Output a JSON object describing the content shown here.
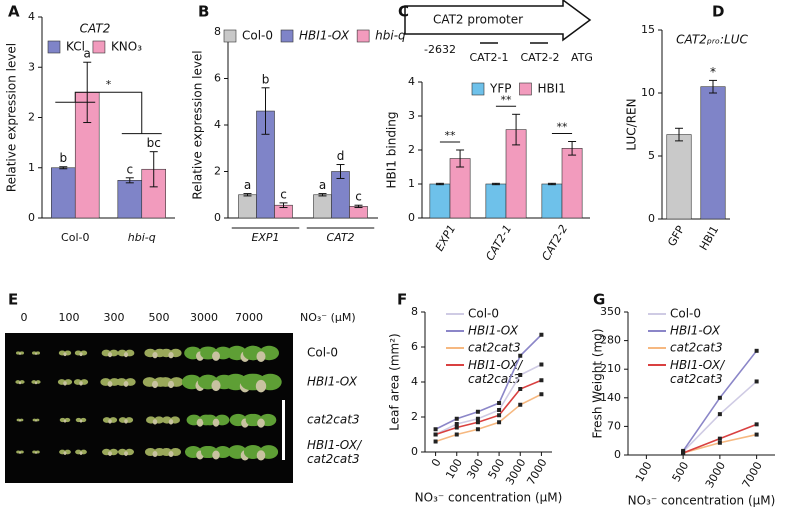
{
  "chart_data": [
    {
      "type": "bar",
      "panel": "A",
      "title": "CAT2",
      "ylabel": "Relative expression level",
      "categories": [
        "Col-0",
        "hbi-q"
      ],
      "categories_italic": [
        false,
        true
      ],
      "series": [
        {
          "name": "KCl",
          "color": "#7f84c8",
          "values": [
            1,
            0.75
          ],
          "errors": [
            0.02,
            0.05
          ],
          "letters": [
            "b",
            "c"
          ]
        },
        {
          "name": "KNO₃",
          "color": "#f29bbd",
          "values": [
            2.5,
            0.97
          ],
          "errors": [
            0.6,
            0.35
          ],
          "letters": [
            "a",
            "bc"
          ]
        }
      ],
      "ylim": [
        0,
        4
      ],
      "yticks": [
        0,
        1,
        2,
        3,
        4
      ],
      "comparison": "*"
    },
    {
      "type": "bar",
      "panel": "B",
      "ylabel": "Relative expression level",
      "categories": [
        "EXP1",
        "CAT2"
      ],
      "categories_italic": [
        true,
        true
      ],
      "series": [
        {
          "name": "Col-0",
          "color": "#c8c8c8",
          "values": [
            1,
            1
          ],
          "errors": [
            0.05,
            0.05
          ],
          "letters": [
            "a",
            "a"
          ]
        },
        {
          "name": "HBI1-OX",
          "italic": true,
          "color": "#7f84c8",
          "values": [
            4.6,
            2.0
          ],
          "errors": [
            1.0,
            0.3
          ],
          "letters": [
            "b",
            "d"
          ]
        },
        {
          "name": "hbi-q",
          "italic": true,
          "color": "#f29bbd",
          "values": [
            0.55,
            0.5
          ],
          "errors": [
            0.1,
            0.05
          ],
          "letters": [
            "c",
            "c"
          ]
        }
      ],
      "ylim": [
        0,
        8
      ],
      "yticks": [
        0,
        2,
        4,
        6,
        8
      ]
    },
    {
      "type": "bar",
      "panel": "C",
      "ylabel": "HBI1 binding",
      "categories": [
        "EXP1",
        "CAT2-1",
        "CAT2-2"
      ],
      "categories_italic": [
        true,
        true,
        true
      ],
      "series": [
        {
          "name": "YFP",
          "color": "#6ec1ea",
          "values": [
            1,
            1,
            1
          ],
          "errors": [
            0.02,
            0.02,
            0.02
          ]
        },
        {
          "name": "HBI1",
          "color": "#f29bbd",
          "values": [
            1.75,
            2.6,
            2.05
          ],
          "errors": [
            0.25,
            0.45,
            0.2
          ]
        }
      ],
      "sig": [
        "**",
        "**",
        "**"
      ],
      "ylim": [
        0,
        4
      ],
      "yticks": [
        0,
        1,
        2,
        3,
        4
      ]
    },
    {
      "type": "bar",
      "panel": "D",
      "title": "CAT2ₚᵣₒ:LUC",
      "ylabel": "LUC/REN",
      "categories": [
        "GFP",
        "HBI1"
      ],
      "categories_italic": [
        false,
        false
      ],
      "series": [
        {
          "colors": [
            "#c9c9c9",
            "#7f84c8"
          ],
          "values": [
            6.7,
            10.5
          ],
          "errors": [
            0.5,
            0.5
          ],
          "letters": [
            null,
            "*"
          ]
        }
      ],
      "ylim": [
        0,
        15
      ],
      "yticks": [
        0,
        5,
        10,
        15
      ]
    },
    {
      "type": "line",
      "panel": "F",
      "ylabel": "Leaf area (mm²)",
      "xlabel": "NO₃⁻ concentration (μM)",
      "categories": [
        "0",
        "100",
        "300",
        "500",
        "3000",
        "7000"
      ],
      "series": [
        {
          "name": "Col-0",
          "color": "#cfcbe4",
          "values": [
            1.0,
            1.6,
            1.9,
            2.4,
            4.4,
            5.0
          ]
        },
        {
          "name": "HBI1-OX",
          "italic": true,
          "color": "#8b86c8",
          "values": [
            1.3,
            1.9,
            2.3,
            2.8,
            5.5,
            6.7
          ]
        },
        {
          "name": "cat2cat3",
          "italic": true,
          "color": "#f6b880",
          "values": [
            0.6,
            1.0,
            1.3,
            1.7,
            2.7,
            3.3
          ]
        },
        {
          "name": "HBI1-OX/ cat2cat3",
          "italic": true,
          "color": "#d94040",
          "values": [
            1.0,
            1.4,
            1.7,
            2.1,
            3.6,
            4.1
          ]
        }
      ],
      "ylim": [
        0,
        8
      ],
      "yticks": [
        0,
        2,
        4,
        6,
        8
      ]
    },
    {
      "type": "line",
      "panel": "G",
      "ylabel": "Fresh Weight (mg)",
      "xlabel": "NO₃⁻ concentration (μM)",
      "categories": [
        "100",
        "500",
        "3000",
        "7000"
      ],
      "series": [
        {
          "name": "Col-0",
          "color": "#cfcbe4",
          "values": [
            null,
            8,
            100,
            180
          ]
        },
        {
          "name": "HBI1-OX",
          "italic": true,
          "color": "#8b86c8",
          "values": [
            null,
            10,
            140,
            255
          ]
        },
        {
          "name": "cat2cat3",
          "italic": true,
          "color": "#f6b880",
          "values": [
            null,
            5,
            30,
            50
          ]
        },
        {
          "name": "HBI1-OX/ cat2cat3",
          "italic": true,
          "color": "#d94040",
          "values": [
            null,
            5,
            40,
            75
          ]
        }
      ],
      "ylim": [
        0,
        350
      ],
      "yticks": [
        0,
        70,
        140,
        210,
        280,
        350
      ]
    }
  ],
  "promoter_diagram": {
    "label": "CAT2 promoter",
    "start": "-2632",
    "sites": [
      "CAT2-1",
      "CAT2-2"
    ],
    "end": "ATG"
  },
  "image_panel": {
    "panel": "E",
    "concentrations": [
      "0",
      "100",
      "300",
      "500",
      "3000",
      "7000"
    ],
    "unit": "NO₃⁻ (μM)",
    "genotypes": [
      "Col-0",
      "HBI1-OX",
      "cat2cat3",
      "HBI1-OX/ cat2cat3"
    ],
    "genotypes_italic": [
      false,
      true,
      true,
      true
    ]
  }
}
